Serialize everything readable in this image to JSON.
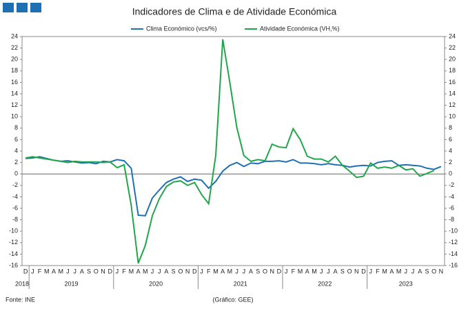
{
  "chart_data": {
    "type": "line",
    "title": "Indicadores de Clima e de Atividade Económica",
    "categories": [
      "D",
      "J",
      "F",
      "M",
      "A",
      "M",
      "J",
      "J",
      "A",
      "S",
      "O",
      "N",
      "D",
      "J",
      "F",
      "M",
      "A",
      "M",
      "J",
      "J",
      "A",
      "S",
      "O",
      "N",
      "D",
      "J",
      "F",
      "M",
      "A",
      "M",
      "J",
      "J",
      "A",
      "S",
      "O",
      "N",
      "D",
      "J",
      "F",
      "M",
      "A",
      "M",
      "J",
      "J",
      "A",
      "S",
      "O",
      "N",
      "D",
      "J",
      "F",
      "M",
      "A",
      "M",
      "J",
      "J",
      "A",
      "S",
      "O",
      "N"
    ],
    "years": [
      "2018",
      "2019",
      "2020",
      "2021",
      "2022",
      "2023"
    ],
    "series": [
      {
        "name": "Clima Económico (vcs/%)",
        "color": "#1f6fb4",
        "values": [
          2.7,
          2.8,
          3.0,
          2.7,
          2.4,
          2.2,
          2.3,
          2.1,
          1.9,
          2.0,
          1.8,
          2.2,
          2.1,
          2.5,
          2.3,
          1.0,
          -7.2,
          -7.3,
          -4.2,
          -2.8,
          -1.5,
          -0.9,
          -0.5,
          -1.3,
          -0.9,
          -1.1,
          -2.5,
          -1.3,
          0.5,
          1.5,
          2.0,
          1.3,
          1.9,
          1.8,
          2.2,
          2.2,
          2.3,
          2.1,
          2.5,
          1.9,
          1.9,
          1.8,
          1.6,
          1.8,
          1.6,
          1.5,
          1.2,
          1.4,
          1.5,
          1.4,
          2.0,
          2.2,
          2.3,
          1.5,
          1.6,
          1.5,
          1.4,
          1.0,
          0.8,
          1.3
        ]
      },
      {
        "name": "Atividade Económica (VH,%)",
        "color": "#1fa64a",
        "values": [
          2.8,
          3.0,
          2.8,
          2.6,
          2.4,
          2.2,
          2.0,
          2.2,
          2.1,
          2.1,
          2.1,
          2.0,
          2.1,
          1.1,
          1.6,
          -5.5,
          -15.6,
          -12.5,
          -7.3,
          -4.3,
          -2.2,
          -1.4,
          -1.2,
          -2.0,
          -1.5,
          -3.6,
          -5.2,
          3.2,
          23.5,
          16.0,
          8.1,
          3.2,
          2.2,
          2.5,
          2.3,
          5.2,
          4.7,
          4.6,
          7.9,
          6.0,
          3.1,
          2.6,
          2.6,
          2.1,
          3.1,
          1.5,
          0.5,
          -0.6,
          -0.4,
          1.9,
          1.0,
          1.2,
          1.0,
          1.5,
          0.7,
          0.9,
          -0.4,
          0.1,
          0.6,
          null
        ]
      }
    ],
    "ylim": [
      -16,
      24
    ],
    "yticks": [
      -16,
      -14,
      -12,
      -10,
      -8,
      -6,
      -4,
      -2,
      0,
      2,
      4,
      6,
      8,
      10,
      12,
      14,
      16,
      18,
      20,
      22,
      24
    ],
    "source": "Fonte: INE",
    "credit": "(Gráfico: GEE)"
  }
}
